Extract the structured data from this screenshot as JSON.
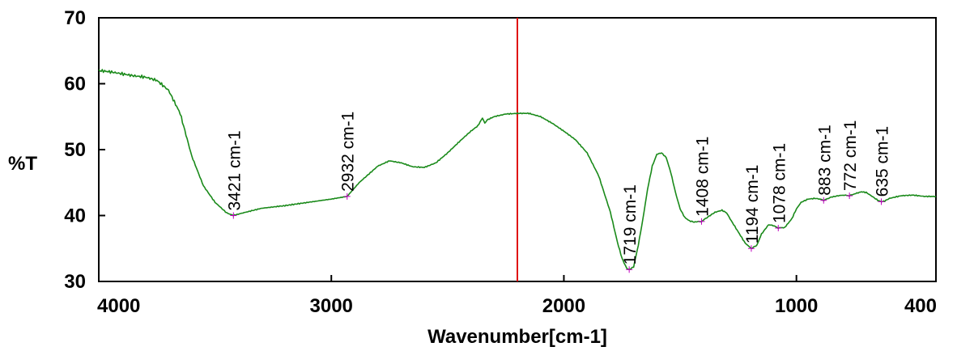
{
  "chart_data": {
    "type": "line",
    "xlabel": "Wavenumber[cm-1]",
    "ylabel": "%T",
    "xlim": [
      4000,
      400
    ],
    "ylim": [
      30,
      70
    ],
    "x_ticks": [
      4000,
      3000,
      2000,
      1000,
      400
    ],
    "y_ticks": [
      30,
      40,
      50,
      60,
      70
    ],
    "cursor_x": 2200,
    "grid": false,
    "colors": {
      "line": "#1a8a1a",
      "cursor": "#e01010",
      "marker": "#c000c0",
      "axis": "#000000"
    },
    "series": [
      {
        "x": [
          4000,
          3950,
          3900,
          3850,
          3800,
          3750,
          3700,
          3650,
          3600,
          3550,
          3500,
          3450,
          3421,
          3380,
          3300,
          3200,
          3100,
          3000,
          2932,
          2880,
          2800,
          2750,
          2700,
          2650,
          2600,
          2550,
          2500,
          2450,
          2400,
          2370,
          2350,
          2340,
          2330,
          2300,
          2250,
          2200,
          2150,
          2100,
          2050,
          2000,
          1950,
          1900,
          1850,
          1800,
          1770,
          1750,
          1730,
          1719,
          1700,
          1680,
          1660,
          1640,
          1620,
          1600,
          1580,
          1560,
          1540,
          1520,
          1500,
          1480,
          1460,
          1440,
          1420,
          1408,
          1380,
          1350,
          1320,
          1300,
          1280,
          1250,
          1220,
          1194,
          1170,
          1150,
          1120,
          1100,
          1078,
          1050,
          1020,
          1000,
          980,
          950,
          920,
          900,
          883,
          850,
          820,
          800,
          772,
          750,
          720,
          700,
          670,
          650,
          635,
          620,
          600,
          550,
          500,
          450,
          400
        ],
        "y": [
          62,
          61.8,
          61.5,
          61.2,
          61,
          60.5,
          59,
          55.5,
          49,
          44.5,
          42,
          40.4,
          40.0,
          40.4,
          41.1,
          41.5,
          42,
          42.5,
          42.9,
          45,
          47.5,
          48.3,
          48,
          47.4,
          47.3,
          48,
          49.5,
          51.2,
          52.8,
          53.6,
          54.8,
          54,
          54.5,
          55,
          55.4,
          55.5,
          55.5,
          55,
          54,
          52.8,
          51.5,
          49.5,
          46,
          40.5,
          36,
          33.5,
          32,
          31.8,
          32.2,
          35.5,
          39.5,
          44,
          47.5,
          49.3,
          49.5,
          48.8,
          46.5,
          43.5,
          41,
          39.7,
          39.2,
          39.0,
          39.1,
          39.1,
          39.8,
          40.5,
          40.8,
          40.4,
          39.2,
          37.5,
          35.8,
          35.0,
          35.5,
          37.2,
          38.6,
          38.5,
          38.1,
          38.2,
          39.5,
          41,
          42,
          42.5,
          42.6,
          42.5,
          42.3,
          42.8,
          43,
          43.1,
          43.0,
          43.3,
          43.6,
          43.5,
          42.8,
          42.3,
          42.1,
          42.2,
          42.6,
          43,
          43.1,
          42.9,
          42.9
        ]
      }
    ],
    "peak_labels": [
      {
        "x": 3421,
        "y": 40.0,
        "text": "3421 cm-1"
      },
      {
        "x": 2932,
        "y": 42.9,
        "text": "2932 cm-1"
      },
      {
        "x": 1719,
        "y": 31.8,
        "text": "1719 cm-1"
      },
      {
        "x": 1408,
        "y": 39.1,
        "text": "1408 cm-1"
      },
      {
        "x": 1194,
        "y": 35.0,
        "text": "1194 cm-1"
      },
      {
        "x": 1078,
        "y": 38.1,
        "text": "1078 cm-1"
      },
      {
        "x": 883,
        "y": 42.3,
        "text": "883 cm-1"
      },
      {
        "x": 772,
        "y": 43.0,
        "text": "772 cm-1"
      },
      {
        "x": 635,
        "y": 42.1,
        "text": "635 cm-1"
      }
    ]
  }
}
